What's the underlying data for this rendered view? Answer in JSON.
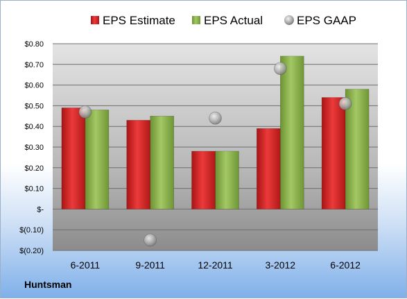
{
  "company": "Huntsman",
  "chart_data": {
    "type": "bar",
    "categories": [
      "6-2011",
      "9-2011",
      "12-2011",
      "3-2012",
      "6-2012"
    ],
    "series": [
      {
        "name": "EPS Estimate",
        "kind": "bar",
        "color": "#d42a2a",
        "values": [
          0.49,
          0.43,
          0.28,
          0.39,
          0.54
        ]
      },
      {
        "name": "EPS Actual",
        "kind": "bar",
        "color": "#86ad4a",
        "values": [
          0.48,
          0.45,
          0.28,
          0.74,
          0.58
        ]
      },
      {
        "name": "EPS GAAP",
        "kind": "scatter",
        "color": "#a9a9a9",
        "values": [
          0.47,
          -0.15,
          0.44,
          0.68,
          0.51
        ]
      }
    ],
    "yticks": [
      0.8,
      0.7,
      0.6,
      0.5,
      0.4,
      0.3,
      0.2,
      0.1,
      0,
      -0.1,
      -0.2
    ],
    "ytick_labels": [
      "$0.80",
      "$0.70",
      "$0.60",
      "$0.50",
      "$0.40",
      "$0.30",
      "$0.20",
      "$0.10",
      "$-",
      "$(0.10)",
      "$(0.20)"
    ],
    "ylim": [
      -0.2,
      0.8
    ],
    "grid": true,
    "legend": "top"
  }
}
